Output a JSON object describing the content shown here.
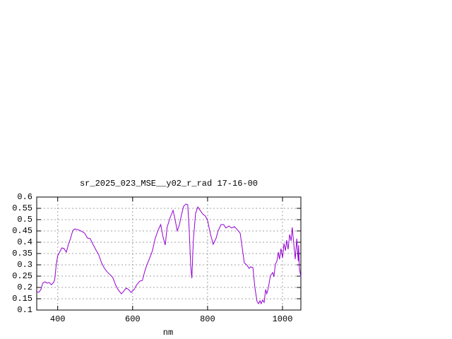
{
  "chart_data": {
    "type": "line",
    "title": "sr_2025_023_MSE__y02_r_rad 17-16-00",
    "x_label": "nm",
    "color": "#9400d3",
    "x": [
      344,
      349,
      355,
      360,
      366,
      372,
      377,
      383,
      389,
      392,
      396,
      400,
      406,
      411,
      417,
      423,
      428,
      434,
      440,
      445,
      453,
      462,
      472,
      479,
      487,
      494,
      502,
      509,
      517,
      525,
      532,
      540,
      547,
      555,
      562,
      570,
      575,
      583,
      589,
      596,
      604,
      611,
      619,
      626,
      632,
      638,
      645,
      653,
      660,
      668,
      675,
      681,
      687,
      692,
      700,
      708,
      713,
      719,
      725,
      730,
      736,
      742,
      747,
      751,
      755,
      758,
      762,
      768,
      774,
      779,
      787,
      794,
      800,
      808,
      815,
      823,
      828,
      836,
      843,
      849,
      857,
      864,
      872,
      879,
      887,
      892,
      898,
      906,
      911,
      915,
      921,
      926,
      932,
      936,
      940,
      943,
      947,
      951,
      955,
      958,
      962,
      968,
      974,
      977,
      981,
      985,
      989,
      992,
      996,
      1000,
      1004,
      1008,
      1011,
      1015,
      1019,
      1023,
      1026,
      1030,
      1034,
      1038,
      1042,
      1043,
      1045,
      1049
    ],
    "values": [
      0.181,
      0.178,
      0.19,
      0.219,
      0.225,
      0.219,
      0.222,
      0.212,
      0.222,
      0.234,
      0.3,
      0.34,
      0.359,
      0.375,
      0.372,
      0.356,
      0.387,
      0.416,
      0.45,
      0.459,
      0.456,
      0.45,
      0.44,
      0.419,
      0.416,
      0.391,
      0.366,
      0.347,
      0.309,
      0.284,
      0.269,
      0.256,
      0.244,
      0.209,
      0.188,
      0.172,
      0.181,
      0.197,
      0.191,
      0.178,
      0.191,
      0.212,
      0.228,
      0.231,
      0.269,
      0.3,
      0.328,
      0.363,
      0.416,
      0.453,
      0.478,
      0.425,
      0.388,
      0.466,
      0.509,
      0.541,
      0.503,
      0.45,
      0.478,
      0.519,
      0.559,
      0.569,
      0.566,
      0.456,
      0.294,
      0.241,
      0.409,
      0.528,
      0.556,
      0.544,
      0.525,
      0.516,
      0.497,
      0.434,
      0.391,
      0.419,
      0.45,
      0.478,
      0.478,
      0.463,
      0.472,
      0.463,
      0.469,
      0.456,
      0.44,
      0.381,
      0.309,
      0.297,
      0.284,
      0.291,
      0.288,
      0.203,
      0.138,
      0.128,
      0.141,
      0.128,
      0.144,
      0.134,
      0.191,
      0.172,
      0.197,
      0.253,
      0.266,
      0.247,
      0.303,
      0.316,
      0.356,
      0.325,
      0.372,
      0.331,
      0.394,
      0.363,
      0.409,
      0.369,
      0.434,
      0.406,
      0.466,
      0.394,
      0.325,
      0.416,
      0.316,
      0.387,
      0.284,
      0.247
    ],
    "xlim": [
      344,
      1049
    ],
    "ylim": [
      0.1,
      0.6
    ],
    "xticks": [
      400,
      600,
      800,
      1000
    ],
    "yticks": [
      0.1,
      0.15,
      0.2,
      0.25,
      0.3,
      0.35,
      0.4,
      0.45,
      0.5,
      0.55,
      0.6
    ],
    "grid": true
  }
}
